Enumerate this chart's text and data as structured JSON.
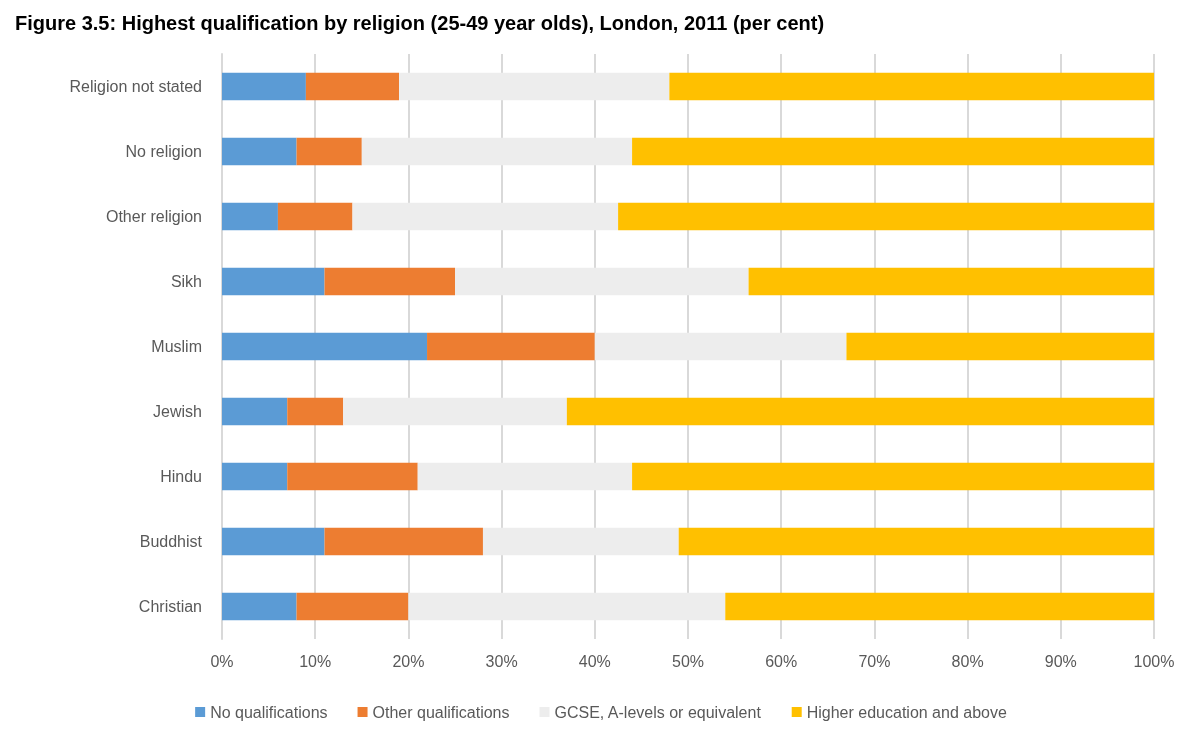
{
  "chart_data": {
    "type": "bar",
    "title": "Figure 3.5: Highest qualification by religion (25-49 year olds), London, 2011 (per cent)",
    "orientation": "horizontal",
    "stacked": true,
    "categories": [
      "Religion not stated",
      "No religion",
      "Other religion",
      "Sikh",
      "Muslim",
      "Jewish",
      "Hindu",
      "Buddhist",
      "Christian"
    ],
    "series": [
      {
        "name": "No qualifications",
        "color": "#5b9bd5",
        "values": [
          9,
          8,
          6,
          11,
          22,
          7,
          7,
          11,
          8
        ]
      },
      {
        "name": "Other qualifications",
        "color": "#ed7d31",
        "values": [
          10,
          7,
          8,
          14,
          18,
          6,
          14,
          17,
          12
        ]
      },
      {
        "name": "GCSE, A-levels or equivalent",
        "color": "#ededed",
        "values": [
          29,
          29,
          28.5,
          31.5,
          27,
          24,
          23,
          21,
          34
        ]
      },
      {
        "name": "Higher education and above",
        "color": "#ffc000",
        "values": [
          52,
          56,
          57.5,
          43.5,
          33,
          63,
          56,
          51,
          46
        ]
      }
    ],
    "xlim": [
      0,
      100
    ],
    "xticks": [
      {
        "value": 0,
        "label": "0%"
      },
      {
        "value": 10,
        "label": "10%"
      },
      {
        "value": 20,
        "label": "20%"
      },
      {
        "value": 30,
        "label": "30%"
      },
      {
        "value": 40,
        "label": "40%"
      },
      {
        "value": 50,
        "label": "50%"
      },
      {
        "value": 60,
        "label": "60%"
      },
      {
        "value": 70,
        "label": "70%"
      },
      {
        "value": 80,
        "label": "80%"
      },
      {
        "value": 90,
        "label": "90%"
      },
      {
        "value": 100,
        "label": "100%"
      }
    ],
    "grid": "x",
    "legend": "bottom"
  }
}
